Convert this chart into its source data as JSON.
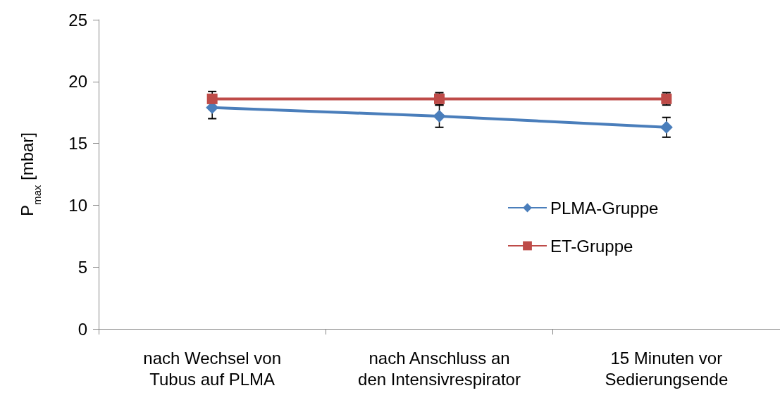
{
  "chart_data": {
    "type": "line",
    "ylabel": "P$_{max}$ [mbar]",
    "categories": [
      "nach Wechsel von\nTubus auf PLMA",
      "nach Anschluss an\nden Intensivrespirator",
      "15 Minuten vor\nSedierungsende"
    ],
    "series": [
      {
        "name": "PLMA-Gruppe",
        "color": "#4a7ebb",
        "marker": "diamond",
        "values": [
          17.9,
          17.2,
          16.3
        ],
        "errors": [
          0.9,
          0.9,
          0.8
        ]
      },
      {
        "name": "ET-Gruppe",
        "color": "#be4b48",
        "marker": "square",
        "values": [
          18.6,
          18.6,
          18.6
        ],
        "errors": [
          0.6,
          0.5,
          0.5
        ]
      }
    ],
    "ylim": [
      0,
      25
    ],
    "yticks": [
      0,
      5,
      10,
      15,
      20,
      25
    ],
    "grid": false,
    "legend": "right",
    "line_style": "solid"
  }
}
